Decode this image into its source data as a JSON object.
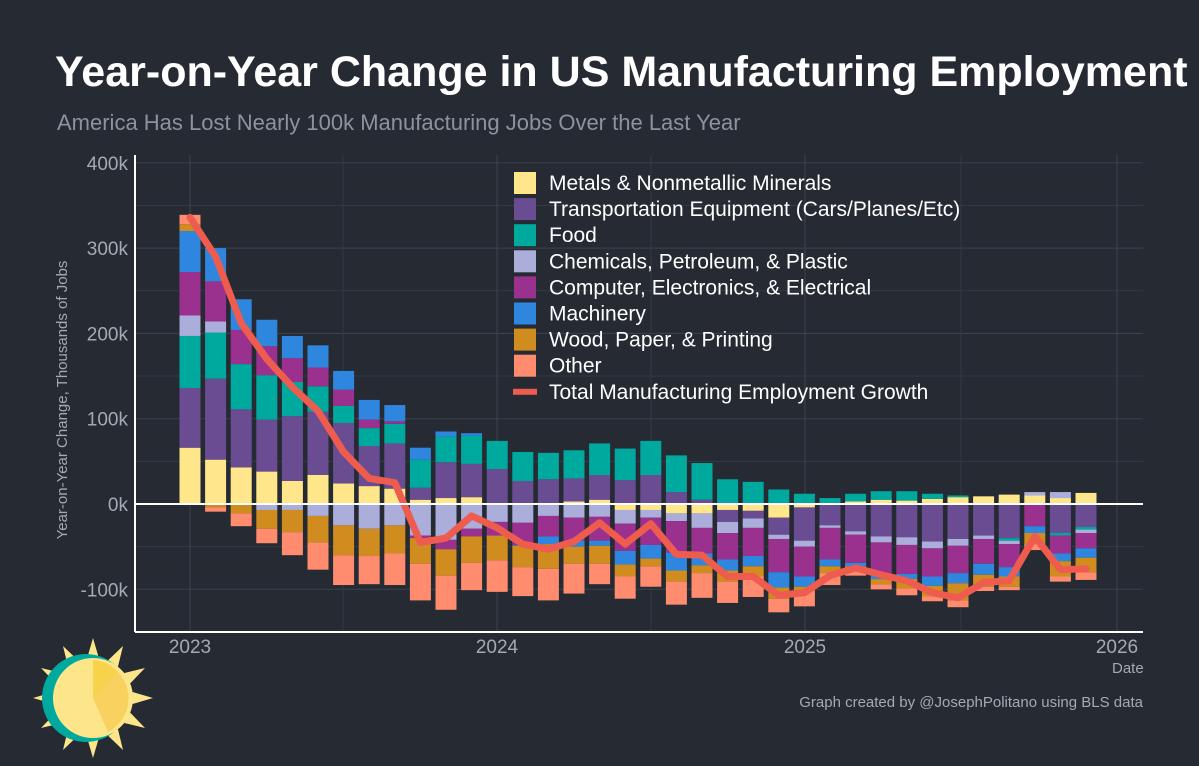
{
  "title": "Year-on-Year Change in US Manufacturing Employment",
  "subtitle": "America Has Lost Nearly 100k Manufacturing Jobs Over the Last Year",
  "footer": "Graph created by @JosephPolitano using BLS data",
  "chart_data": {
    "type": "bar",
    "stacked": true,
    "ylabel": "Year-on-Year Change, Thousands of Jobs",
    "xlabel": "Date",
    "ylim": [
      -150,
      400
    ],
    "yticks": [
      "-100k",
      "0k",
      "100k",
      "200k",
      "300k",
      "400k"
    ],
    "ytick_values": [
      -100,
      0,
      100,
      200,
      300,
      400
    ],
    "xticks": [
      "2023",
      "2024",
      "2025",
      "2026"
    ],
    "grid": true,
    "legend_position": "top-right",
    "categories": [
      "2023-01",
      "2023-02",
      "2023-03",
      "2023-04",
      "2023-05",
      "2023-06",
      "2023-07",
      "2023-08",
      "2023-09",
      "2023-10",
      "2023-11",
      "2023-12",
      "2024-01",
      "2024-02",
      "2024-03",
      "2024-04",
      "2024-05",
      "2024-06",
      "2024-07",
      "2024-08",
      "2024-09",
      "2024-10",
      "2024-11",
      "2024-12",
      "2025-01",
      "2025-02",
      "2025-03",
      "2025-04",
      "2025-05",
      "2025-06",
      "2025-07",
      "2025-08",
      "2025-09",
      "2025-10",
      "2025-11",
      "2025-12"
    ],
    "series": [
      {
        "name": "Metals & Nonmetallic Minerals",
        "color": "#ffe68a",
        "values": [
          66,
          52,
          43,
          38,
          27,
          34,
          24,
          21,
          18,
          5,
          7,
          8,
          0,
          0,
          0,
          3,
          5,
          -7,
          -7,
          -11,
          -11,
          -7,
          -8,
          -16,
          -4,
          1,
          3,
          5,
          4,
          6,
          8,
          9,
          11,
          10,
          7,
          13
        ]
      },
      {
        "name": "Transportation Equipment (Cars/Planes/Etc)",
        "color": "#6a4c93",
        "values": [
          70,
          95,
          68,
          61,
          76,
          74,
          71,
          47,
          53,
          14,
          42,
          39,
          41,
          27,
          29,
          27,
          29,
          28,
          34,
          14,
          5,
          -14,
          -9,
          -20,
          -39,
          -25,
          -32,
          -38,
          -39,
          -44,
          -41,
          -37,
          -40,
          0,
          -34,
          -27
        ]
      },
      {
        "name": "Food",
        "color": "#00a99d",
        "values": [
          61,
          54,
          53,
          52,
          40,
          30,
          20,
          21,
          23,
          33,
          30,
          33,
          33,
          34,
          31,
          33,
          37,
          37,
          40,
          43,
          43,
          29,
          26,
          17,
          12,
          6,
          9,
          10,
          11,
          6,
          2,
          0,
          -3,
          0,
          -3,
          -3
        ]
      },
      {
        "name": "Chemicals, Petroleum, & Plastic",
        "color": "#abaedb",
        "values": [
          24,
          13,
          0,
          -7,
          -7,
          -14,
          -25,
          -29,
          -25,
          -37,
          -42,
          -29,
          -21,
          -22,
          -14,
          -16,
          -15,
          -16,
          -9,
          -9,
          -17,
          -13,
          -11,
          -5,
          -7,
          -3,
          -4,
          -7,
          -9,
          -8,
          -8,
          -4,
          -4,
          4,
          7,
          -4
        ]
      },
      {
        "name": "Computer, Electronics, & Electrical",
        "color": "#9b318f",
        "values": [
          51,
          47,
          40,
          34,
          28,
          22,
          19,
          10,
          3,
          -3,
          -11,
          -9,
          -16,
          -26,
          -24,
          -27,
          -28,
          -32,
          -32,
          -37,
          -30,
          -31,
          -33,
          -39,
          -35,
          -37,
          -33,
          -39,
          -34,
          -33,
          -32,
          -29,
          -27,
          -26,
          -21,
          -18
        ]
      },
      {
        "name": "Machinery",
        "color": "#2f86de",
        "values": [
          48,
          39,
          36,
          31,
          26,
          26,
          22,
          23,
          19,
          14,
          6,
          3,
          0,
          -1,
          -9,
          -7,
          -6,
          -16,
          -16,
          -21,
          -14,
          -13,
          -12,
          -18,
          -12,
          -8,
          -4,
          -4,
          -6,
          -11,
          -12,
          -13,
          -11,
          -8,
          -9,
          -11
        ]
      },
      {
        "name": "Wood, Paper, & Printing",
        "color": "#d08c1e",
        "values": [
          8,
          -4,
          -11,
          -22,
          -26,
          -31,
          -35,
          -32,
          -33,
          -30,
          -31,
          -31,
          -29,
          -25,
          -29,
          -20,
          -21,
          -14,
          -9,
          -13,
          -9,
          -13,
          -12,
          -13,
          -5,
          -8,
          -6,
          -6,
          -11,
          -12,
          -20,
          -14,
          -12,
          -13,
          -18,
          -17
        ]
      },
      {
        "name": "Other",
        "color": "#ff8c6e",
        "values": [
          11,
          -5,
          -15,
          -17,
          -27,
          -32,
          -35,
          -33,
          -37,
          -43,
          -40,
          -32,
          -37,
          -34,
          -37,
          -35,
          -24,
          -26,
          -24,
          -27,
          -29,
          -25,
          -24,
          -16,
          -18,
          -14,
          -5,
          -6,
          -8,
          -6,
          -8,
          -5,
          -4,
          -7,
          -6,
          -9
        ]
      }
    ],
    "line": {
      "name": "Total Manufacturing Employment Growth",
      "color": "#ee5b4f",
      "values": [
        336,
        290,
        212,
        170,
        137,
        109,
        61,
        30,
        25,
        -45,
        -40,
        -14,
        -28,
        -47,
        -53,
        -44,
        -22,
        -47,
        -23,
        -59,
        -60,
        -85,
        -85,
        -107,
        -104,
        -84,
        -75,
        -83,
        -90,
        -104,
        -110,
        -92,
        -90,
        -38,
        -77,
        -76
      ]
    }
  }
}
